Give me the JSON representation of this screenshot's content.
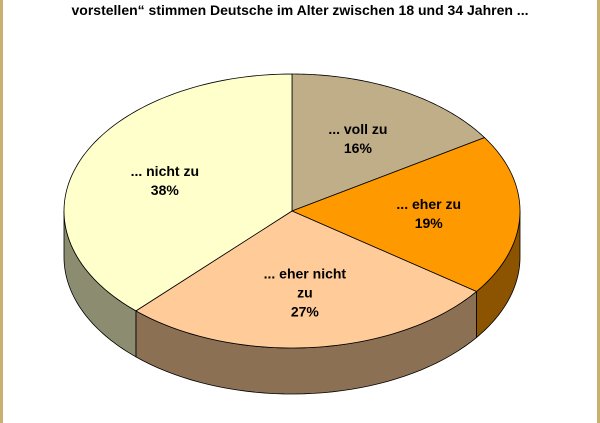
{
  "chart_data": {
    "type": "pie",
    "title": "vorstellen“ stimmen Deutsche im Alter zwischen 18 und 34 Jahren ...",
    "categories": [
      "... voll zu",
      "... eher zu",
      "... eher nicht zu",
      "... nicht zu"
    ],
    "values": [
      16,
      19,
      27,
      38
    ],
    "value_labels": [
      "16%",
      "19%",
      "27%",
      "38%"
    ],
    "colors": [
      "#bfae88",
      "#ff9900",
      "#ffcc99",
      "#ffffcc"
    ]
  }
}
